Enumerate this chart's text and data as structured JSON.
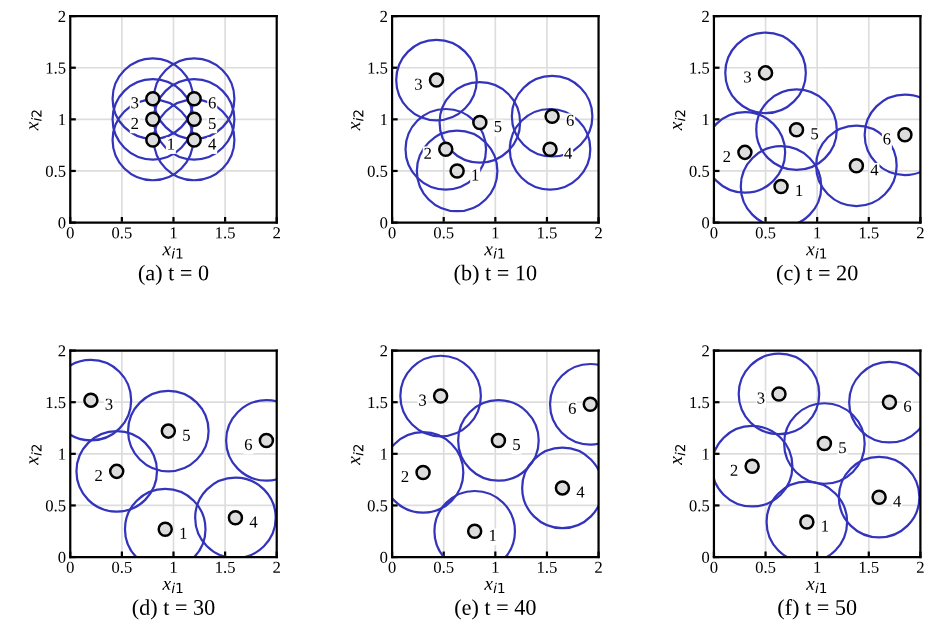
{
  "chart_data": [
    {
      "type": "scatter",
      "title": "(a) t = 0",
      "xlabel": "x$_{i1}$",
      "ylabel": "x$_{i2}$",
      "xlim": [
        0,
        2
      ],
      "ylim": [
        0,
        2
      ],
      "xticks": [
        0,
        0.5,
        1,
        1.5,
        2
      ],
      "yticks": [
        0,
        0.5,
        1,
        1.5,
        2
      ],
      "grid": true,
      "marker": "circle",
      "series": [
        {
          "type": "bubble",
          "color": "#3333bb",
          "x": [
            0.8,
            0.8,
            0.8,
            1.2,
            1.2,
            1.2
          ],
          "values": [
            0.8,
            1.0,
            1.2,
            0.8,
            1.0,
            1.2
          ],
          "sizes": [
            1,
            1,
            1,
            1,
            1,
            1
          ]
        },
        {
          "color": "#000000",
          "x": [
            0.8,
            0.8,
            0.8,
            1.2,
            1.2,
            1.2
          ],
          "values": [
            0.8,
            1.0,
            1.2,
            0.8,
            1.0,
            1.2
          ]
        }
      ],
      "annotations": [
        {
          "text": "1",
          "x": 0.8,
          "y": 0.8
        },
        {
          "text": "2",
          "x": 0.8,
          "y": 1.0
        },
        {
          "text": "3",
          "x": 0.8,
          "y": 1.2
        },
        {
          "text": "4",
          "x": 1.2,
          "y": 0.8
        },
        {
          "text": "5",
          "x": 1.2,
          "y": 1.0
        },
        {
          "text": "6",
          "x": 1.2,
          "y": 1.2
        }
      ]
    },
    {
      "type": "scatter",
      "title": "(b) t = 10",
      "xlabel": "x$_{i1}$",
      "ylabel": "x$_{i2}$",
      "xlim": [
        0,
        2
      ],
      "ylim": [
        0,
        2
      ],
      "xticks": [
        0,
        0.5,
        1,
        1.5,
        2
      ],
      "yticks": [
        0,
        0.5,
        1,
        1.5,
        2
      ],
      "grid": true,
      "marker": "circle",
      "series": [
        {
          "type": "bubble",
          "color": "#3333bb",
          "x": [
            0.63,
            0.52,
            0.43,
            1.53,
            0.85,
            1.55
          ],
          "values": [
            0.5,
            0.71,
            1.38,
            0.71,
            0.97,
            1.03
          ],
          "sizes": [
            1,
            1,
            1,
            1,
            1,
            1
          ]
        },
        {
          "color": "#000000",
          "x": [
            0.63,
            0.52,
            0.43,
            1.53,
            0.85,
            1.55
          ],
          "values": [
            0.5,
            0.71,
            1.38,
            0.71,
            0.97,
            1.03
          ]
        }
      ],
      "annotations": [
        {
          "text": "1",
          "x": 0.63,
          "y": 0.5
        },
        {
          "text": "2",
          "x": 0.52,
          "y": 0.71
        },
        {
          "text": "3",
          "x": 0.43,
          "y": 1.38
        },
        {
          "text": "4",
          "x": 1.53,
          "y": 0.71
        },
        {
          "text": "5",
          "x": 0.85,
          "y": 0.97
        },
        {
          "text": "6",
          "x": 1.55,
          "y": 1.03
        }
      ]
    },
    {
      "type": "scatter",
      "title": "(c) t = 20",
      "xlabel": "x$_{i1}$",
      "ylabel": "x$_{i2}$",
      "xlim": [
        0,
        2
      ],
      "ylim": [
        0,
        2
      ],
      "xticks": [
        0,
        0.5,
        1,
        1.5,
        2
      ],
      "yticks": [
        0,
        0.5,
        1,
        1.5,
        2
      ],
      "grid": true,
      "marker": "circle",
      "series": [
        {
          "type": "bubble",
          "color": "#3333bb",
          "x": [
            0.65,
            0.3,
            0.5,
            1.38,
            0.8,
            1.85
          ],
          "values": [
            0.35,
            0.68,
            1.45,
            0.55,
            0.9,
            0.85
          ],
          "sizes": [
            1,
            1,
            1,
            1,
            1,
            1
          ]
        },
        {
          "color": "#000000",
          "x": [
            0.65,
            0.3,
            0.5,
            1.38,
            0.8,
            1.85
          ],
          "values": [
            0.35,
            0.68,
            1.45,
            0.55,
            0.9,
            0.85
          ]
        }
      ],
      "annotations": [
        {
          "text": "1",
          "x": 0.65,
          "y": 0.35
        },
        {
          "text": "2",
          "x": 0.3,
          "y": 0.68
        },
        {
          "text": "3",
          "x": 0.5,
          "y": 1.45
        },
        {
          "text": "4",
          "x": 1.38,
          "y": 0.55
        },
        {
          "text": "5",
          "x": 0.8,
          "y": 0.9
        },
        {
          "text": "6",
          "x": 1.85,
          "y": 0.85
        }
      ]
    },
    {
      "type": "scatter",
      "title": "(d) t = 30",
      "xlabel": "x$_{i1}$",
      "ylabel": "x$_{i2}$",
      "xlim": [
        0,
        2
      ],
      "ylim": [
        0,
        2
      ],
      "xticks": [
        0,
        0.5,
        1,
        1.5,
        2
      ],
      "yticks": [
        0,
        0.5,
        1,
        1.5,
        2
      ],
      "grid": true,
      "marker": "circle",
      "series": [
        {
          "type": "bubble",
          "color": "#3333bb",
          "x": [
            0.92,
            0.45,
            0.2,
            1.6,
            0.95,
            1.9
          ],
          "values": [
            0.27,
            0.83,
            1.52,
            0.38,
            1.22,
            1.13
          ],
          "sizes": [
            1,
            1,
            1,
            1,
            1,
            1
          ]
        },
        {
          "color": "#000000",
          "x": [
            0.92,
            0.45,
            0.2,
            1.6,
            0.95,
            1.9
          ],
          "values": [
            0.27,
            0.83,
            1.52,
            0.38,
            1.22,
            1.13
          ]
        }
      ],
      "annotations": [
        {
          "text": "1",
          "x": 0.92,
          "y": 0.27
        },
        {
          "text": "2",
          "x": 0.45,
          "y": 0.83
        },
        {
          "text": "3",
          "x": 0.2,
          "y": 1.52
        },
        {
          "text": "4",
          "x": 1.6,
          "y": 0.38
        },
        {
          "text": "5",
          "x": 0.95,
          "y": 1.22
        },
        {
          "text": "6",
          "x": 1.9,
          "y": 1.13
        }
      ]
    },
    {
      "type": "scatter",
      "title": "(e) t = 40",
      "xlabel": "x$_{i1}$",
      "ylabel": "x$_{i2}$",
      "xlim": [
        0,
        2
      ],
      "ylim": [
        0,
        2
      ],
      "xticks": [
        0,
        0.5,
        1,
        1.5,
        2
      ],
      "yticks": [
        0,
        0.5,
        1,
        1.5,
        2
      ],
      "grid": true,
      "marker": "circle",
      "series": [
        {
          "type": "bubble",
          "color": "#3333bb",
          "x": [
            0.8,
            0.3,
            0.47,
            1.65,
            1.03,
            1.92
          ],
          "values": [
            0.25,
            0.82,
            1.56,
            0.67,
            1.13,
            1.48
          ],
          "sizes": [
            1,
            1,
            1,
            1,
            1,
            1
          ]
        },
        {
          "color": "#000000",
          "x": [
            0.8,
            0.3,
            0.47,
            1.65,
            1.03,
            1.92
          ],
          "values": [
            0.25,
            0.82,
            1.56,
            0.67,
            1.13,
            1.48
          ]
        }
      ],
      "annotations": [
        {
          "text": "1",
          "x": 0.8,
          "y": 0.25
        },
        {
          "text": "2",
          "x": 0.3,
          "y": 0.82
        },
        {
          "text": "3",
          "x": 0.47,
          "y": 1.56
        },
        {
          "text": "4",
          "x": 1.65,
          "y": 0.67
        },
        {
          "text": "5",
          "x": 1.03,
          "y": 1.13
        },
        {
          "text": "6",
          "x": 1.92,
          "y": 1.48
        }
      ]
    },
    {
      "type": "scatter",
      "title": "(f) t = 50",
      "xlabel": "x$_{i1}$",
      "ylabel": "x$_{i2}$",
      "xlim": [
        0,
        2
      ],
      "ylim": [
        0,
        2
      ],
      "xticks": [
        0,
        0.5,
        1,
        1.5,
        2
      ],
      "yticks": [
        0,
        0.5,
        1,
        1.5,
        2
      ],
      "grid": true,
      "marker": "circle",
      "series": [
        {
          "type": "bubble",
          "color": "#3333bb",
          "x": [
            0.9,
            0.37,
            0.63,
            1.6,
            1.07,
            1.7
          ],
          "values": [
            0.34,
            0.88,
            1.58,
            0.58,
            1.1,
            1.5
          ],
          "sizes": [
            1,
            1,
            1,
            1,
            1,
            1
          ]
        },
        {
          "color": "#000000",
          "x": [
            0.9,
            0.37,
            0.63,
            1.6,
            1.07,
            1.7
          ],
          "values": [
            0.34,
            0.88,
            1.58,
            0.58,
            1.1,
            1.5
          ]
        }
      ],
      "annotations": [
        {
          "text": "1",
          "x": 0.9,
          "y": 0.34
        },
        {
          "text": "2",
          "x": 0.37,
          "y": 0.88
        },
        {
          "text": "3",
          "x": 0.63,
          "y": 1.58
        },
        {
          "text": "4",
          "x": 1.6,
          "y": 0.58
        },
        {
          "text": "5",
          "x": 1.07,
          "y": 1.1
        },
        {
          "text": "6",
          "x": 1.7,
          "y": 1.5
        }
      ]
    }
  ]
}
